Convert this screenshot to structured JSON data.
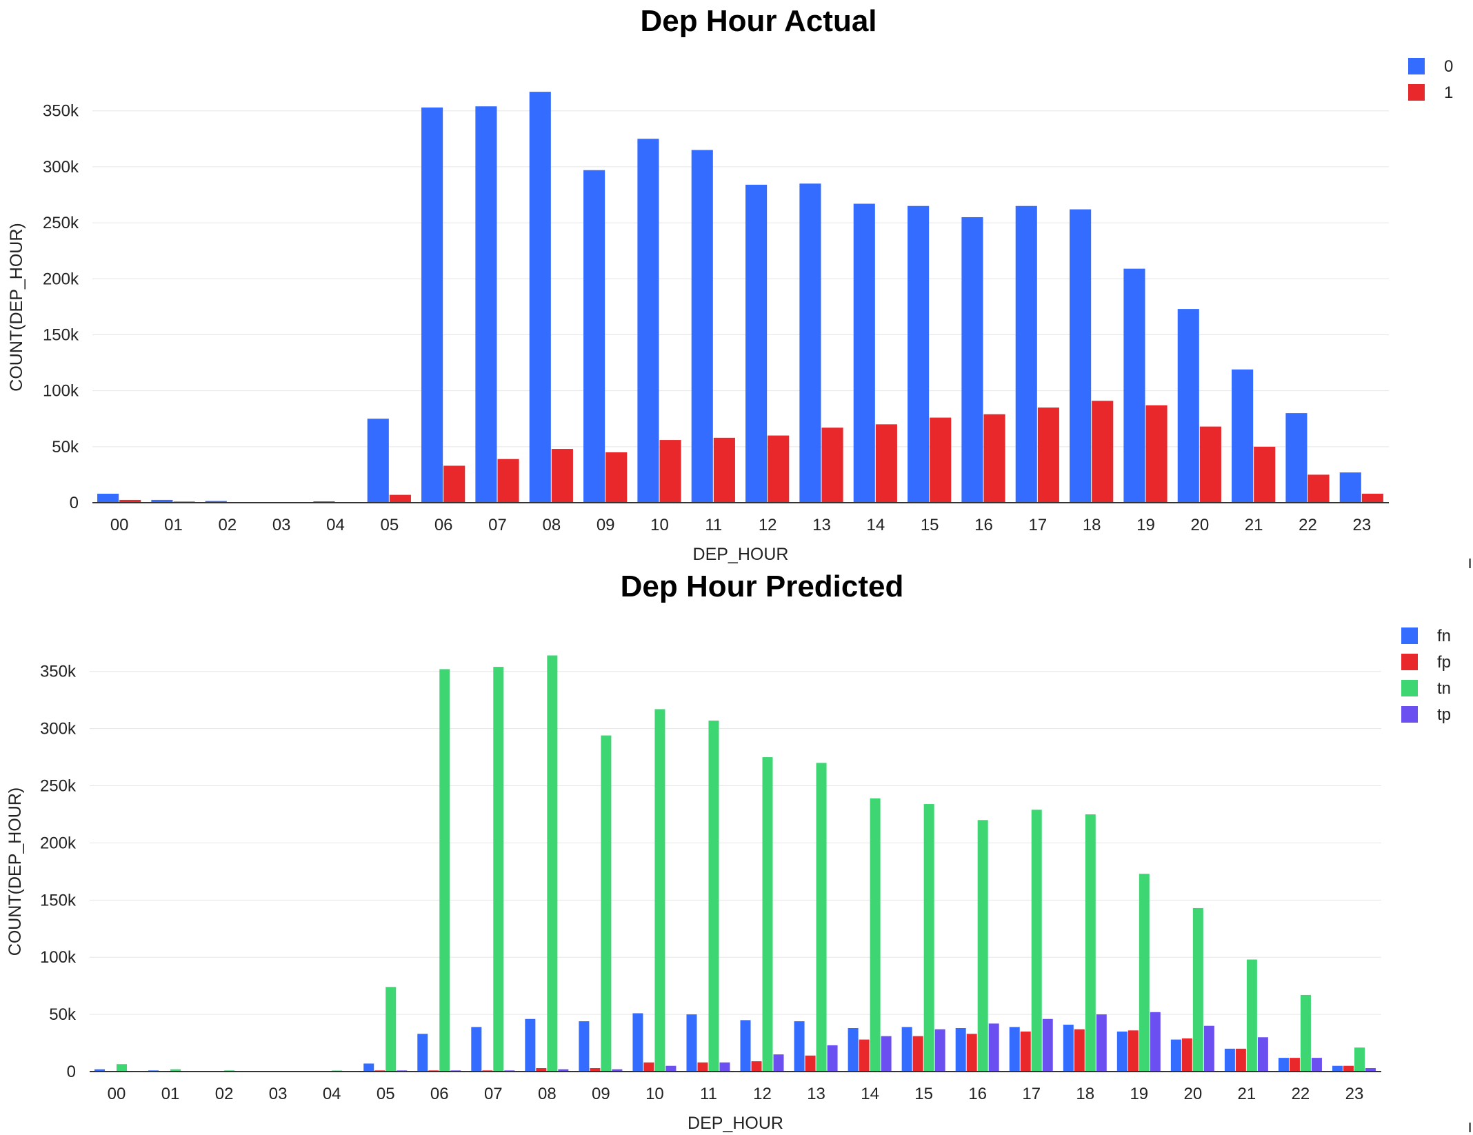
{
  "chart_data": [
    {
      "type": "bar",
      "title": "Dep Hour Actual",
      "xlabel": "DEP_HOUR",
      "ylabel": "COUNT(DEP_HOUR)",
      "ylim": [
        0,
        380000
      ],
      "yticks": [
        0,
        50000,
        100000,
        150000,
        200000,
        250000,
        300000,
        350000
      ],
      "ytick_labels": [
        "0",
        "50k",
        "100k",
        "150k",
        "200k",
        "250k",
        "300k",
        "350k"
      ],
      "grid": true,
      "legend_position": "top-right",
      "categories": [
        "00",
        "01",
        "02",
        "03",
        "04",
        "05",
        "06",
        "07",
        "08",
        "09",
        "10",
        "11",
        "12",
        "13",
        "14",
        "15",
        "16",
        "17",
        "18",
        "19",
        "20",
        "21",
        "22",
        "23"
      ],
      "series": [
        {
          "name": "0",
          "color": "#336cff",
          "values": [
            8000,
            2500,
            1500,
            300,
            1200,
            75000,
            353000,
            354000,
            367000,
            297000,
            325000,
            315000,
            284000,
            285000,
            267000,
            265000,
            255000,
            265000,
            262000,
            209000,
            173000,
            119000,
            80000,
            27000
          ]
        },
        {
          "name": "1",
          "color": "#e8282b",
          "values": [
            2500,
            1000,
            400,
            100,
            300,
            7000,
            33000,
            39000,
            48000,
            45000,
            56000,
            58000,
            60000,
            67000,
            70000,
            76000,
            79000,
            85000,
            91000,
            87000,
            68000,
            50000,
            25000,
            8000
          ]
        }
      ]
    },
    {
      "type": "bar",
      "title": "Dep Hour Predicted",
      "xlabel": "DEP_HOUR",
      "ylabel": "COUNT(DEP_HOUR)",
      "ylim": [
        0,
        380000
      ],
      "yticks": [
        0,
        50000,
        100000,
        150000,
        200000,
        250000,
        300000,
        350000
      ],
      "ytick_labels": [
        "0",
        "50k",
        "100k",
        "150k",
        "200k",
        "250k",
        "300k",
        "350k"
      ],
      "grid": true,
      "legend_position": "top-right",
      "categories": [
        "00",
        "01",
        "02",
        "03",
        "04",
        "05",
        "06",
        "07",
        "08",
        "09",
        "10",
        "11",
        "12",
        "13",
        "14",
        "15",
        "16",
        "17",
        "18",
        "19",
        "20",
        "21",
        "22",
        "23"
      ],
      "series": [
        {
          "name": "fn",
          "color": "#336cff",
          "values": [
            2000,
            1000,
            500,
            100,
            300,
            7000,
            33000,
            39000,
            46000,
            44000,
            51000,
            50000,
            45000,
            44000,
            38000,
            39000,
            38000,
            39000,
            41000,
            35000,
            28000,
            20000,
            12000,
            5000
          ]
        },
        {
          "name": "fp",
          "color": "#e8282b",
          "values": [
            500,
            300,
            100,
            50,
            100,
            1000,
            1000,
            1000,
            3000,
            3000,
            8000,
            8000,
            9000,
            14000,
            28000,
            31000,
            33000,
            35000,
            37000,
            36000,
            29000,
            20000,
            12000,
            5000
          ]
        },
        {
          "name": "tn",
          "color": "#3dd673",
          "values": [
            6500,
            2000,
            1000,
            200,
            900,
            74000,
            352000,
            354000,
            364000,
            294000,
            317000,
            307000,
            275000,
            270000,
            239000,
            234000,
            220000,
            229000,
            225000,
            173000,
            143000,
            98000,
            67000,
            21000
          ]
        },
        {
          "name": "tp",
          "color": "#6b4ff0",
          "values": [
            500,
            300,
            100,
            50,
            100,
            1000,
            1000,
            1000,
            2000,
            2000,
            5000,
            8000,
            15000,
            23000,
            31000,
            37000,
            42000,
            46000,
            50000,
            52000,
            40000,
            30000,
            12000,
            3000
          ]
        }
      ]
    }
  ]
}
